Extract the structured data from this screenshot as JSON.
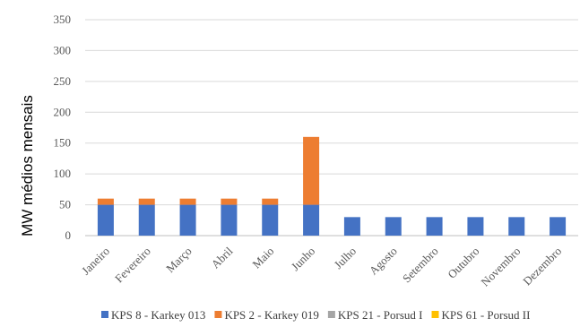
{
  "chart_data": {
    "type": "bar",
    "stacked": true,
    "title": "",
    "xlabel": "",
    "ylabel": "MW médios mensais",
    "ylim": [
      0,
      350
    ],
    "yticks": [
      0,
      50,
      100,
      150,
      200,
      250,
      300,
      350
    ],
    "grid": true,
    "legend_position": "bottom",
    "categories": [
      "Janeiro",
      "Fevereiro",
      "Março",
      "Abril",
      "Maio",
      "Junho",
      "Julho",
      "Agosto",
      "Setembro",
      "Outubro",
      "Novembro",
      "Dezembro"
    ],
    "series": [
      {
        "name": "KPS 8 - Karkey 013",
        "color": "#4472c4",
        "values": [
          50,
          50,
          50,
          50,
          50,
          50,
          30,
          30,
          30,
          30,
          30,
          30
        ]
      },
      {
        "name": "KPS 2 - Karkey 019",
        "color": "#ed7d31",
        "values": [
          10,
          10,
          10,
          10,
          10,
          110,
          0,
          0,
          0,
          0,
          0,
          0
        ]
      },
      {
        "name": "KPS 21 - Porsud I",
        "color": "#a5a5a5",
        "values": [
          0,
          0,
          0,
          0,
          0,
          0,
          0,
          0,
          0,
          0,
          0,
          0
        ]
      },
      {
        "name": "KPS 61 - Porsud II",
        "color": "#ffc000",
        "values": [
          0,
          0,
          0,
          0,
          0,
          0,
          0,
          0,
          0,
          0,
          0,
          0
        ]
      }
    ]
  }
}
